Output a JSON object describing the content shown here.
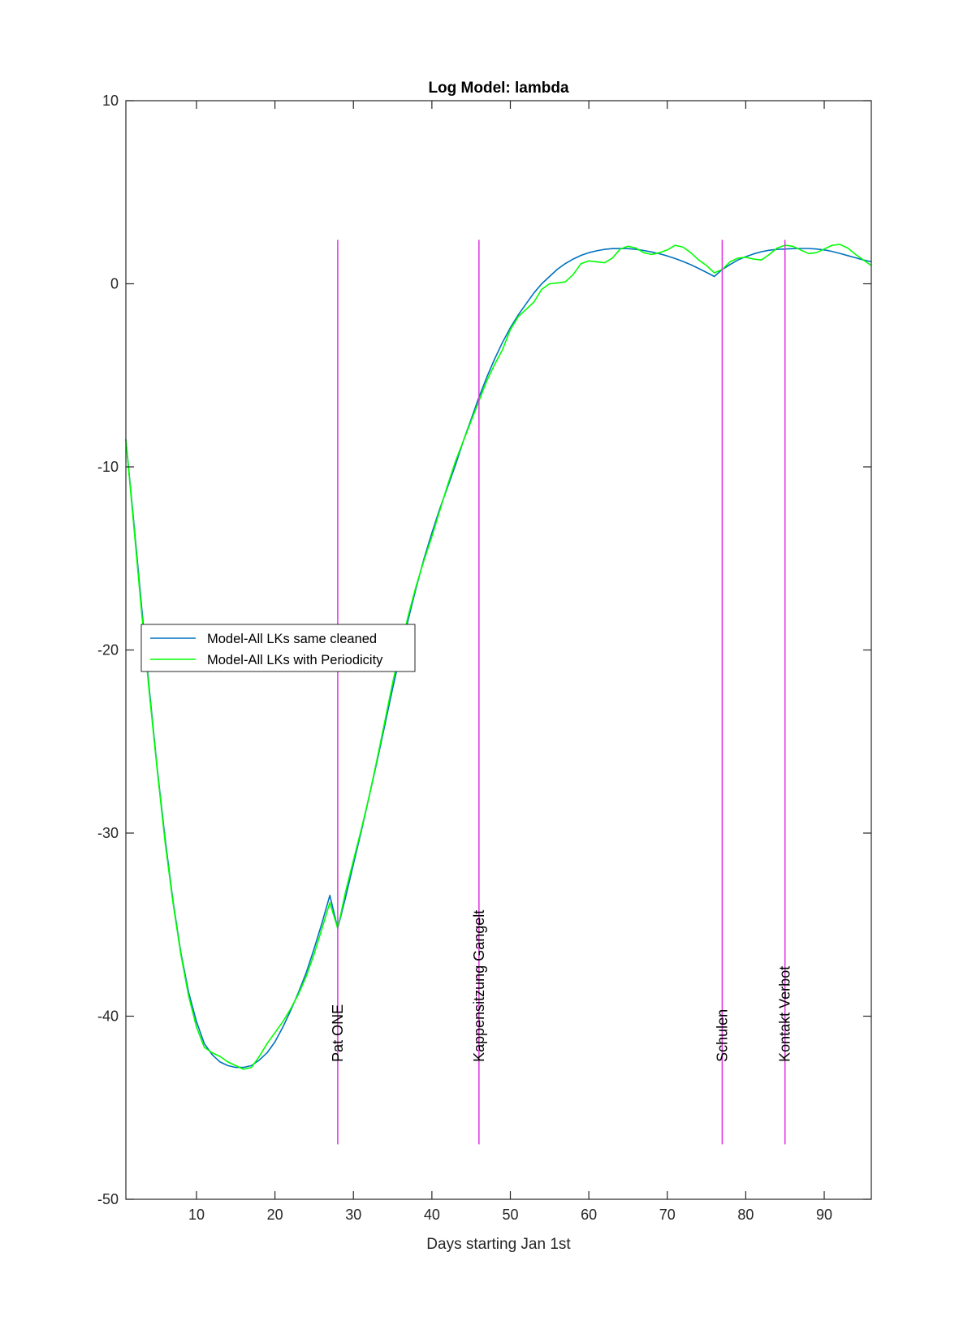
{
  "chart_data": {
    "type": "line",
    "title": "Log Model: lambda",
    "xlabel": "Days starting Jan 1st",
    "ylabel": "",
    "xlim": [
      1,
      96
    ],
    "ylim": [
      -50,
      10
    ],
    "xticks": [
      10,
      20,
      30,
      40,
      50,
      60,
      70,
      80,
      90
    ],
    "yticks": [
      -50,
      -40,
      -30,
      -20,
      -10,
      0,
      10
    ],
    "grid": false,
    "legend_position": "middle-left",
    "series": [
      {
        "name": "Model-All LKs same cleaned",
        "color": "#0072BD",
        "points": [
          [
            1,
            -8.5
          ],
          [
            2,
            -13
          ],
          [
            3,
            -17.6
          ],
          [
            4,
            -22.2
          ],
          [
            5,
            -26.5
          ],
          [
            6,
            -30.3
          ],
          [
            7,
            -33.7
          ],
          [
            8,
            -36.5
          ],
          [
            9,
            -38.7
          ],
          [
            10,
            -40.3
          ],
          [
            11,
            -41.5
          ],
          [
            12,
            -42.1
          ],
          [
            13,
            -42.5
          ],
          [
            14,
            -42.7
          ],
          [
            15,
            -42.8
          ],
          [
            16,
            -42.8
          ],
          [
            17,
            -42.7
          ],
          [
            18,
            -42.4
          ],
          [
            19,
            -42
          ],
          [
            20,
            -41.4
          ],
          [
            21,
            -40.6
          ],
          [
            22,
            -39.7
          ],
          [
            23,
            -38.7
          ],
          [
            24,
            -37.6
          ],
          [
            25,
            -36.3
          ],
          [
            26,
            -34.9
          ],
          [
            27,
            -33.4
          ],
          [
            28,
            -35.2
          ],
          [
            29,
            -33.5
          ],
          [
            30,
            -31.7
          ],
          [
            31,
            -29.9
          ],
          [
            32,
            -28
          ],
          [
            33,
            -26.1
          ],
          [
            34,
            -24.1
          ],
          [
            35,
            -22.1
          ],
          [
            36,
            -20.2
          ],
          [
            37,
            -18.3
          ],
          [
            38,
            -16.6
          ],
          [
            39,
            -15
          ],
          [
            40,
            -13.6
          ],
          [
            41,
            -12.3
          ],
          [
            42,
            -11.1
          ],
          [
            43,
            -9.9
          ],
          [
            44,
            -8.6
          ],
          [
            45,
            -7.4
          ],
          [
            46,
            -6.2
          ],
          [
            47,
            -5.1
          ],
          [
            48,
            -4.1
          ],
          [
            49,
            -3.2
          ],
          [
            50,
            -2.4
          ],
          [
            51,
            -1.7
          ],
          [
            52,
            -1.1
          ],
          [
            53,
            -0.5
          ],
          [
            54,
            0
          ],
          [
            55,
            0.4
          ],
          [
            56,
            0.8
          ],
          [
            57,
            1.1
          ],
          [
            58,
            1.35
          ],
          [
            59,
            1.55
          ],
          [
            60,
            1.7
          ],
          [
            61,
            1.8
          ],
          [
            62,
            1.88
          ],
          [
            63,
            1.92
          ],
          [
            64,
            1.93
          ],
          [
            65,
            1.92
          ],
          [
            66,
            1.88
          ],
          [
            67,
            1.82
          ],
          [
            68,
            1.74
          ],
          [
            69,
            1.64
          ],
          [
            70,
            1.52
          ],
          [
            71,
            1.38
          ],
          [
            72,
            1.22
          ],
          [
            73,
            1.04
          ],
          [
            74,
            0.84
          ],
          [
            75,
            0.62
          ],
          [
            76,
            0.4
          ],
          [
            77,
            0.78
          ],
          [
            78,
            1.05
          ],
          [
            79,
            1.3
          ],
          [
            80,
            1.48
          ],
          [
            81,
            1.63
          ],
          [
            82,
            1.75
          ],
          [
            83,
            1.83
          ],
          [
            84,
            1.88
          ],
          [
            85,
            1.9
          ],
          [
            86,
            1.92
          ],
          [
            87,
            1.93
          ],
          [
            88,
            1.93
          ],
          [
            89,
            1.9
          ],
          [
            90,
            1.85
          ],
          [
            91,
            1.77
          ],
          [
            92,
            1.66
          ],
          [
            93,
            1.54
          ],
          [
            94,
            1.42
          ],
          [
            95,
            1.3
          ],
          [
            96,
            1.2
          ]
        ]
      },
      {
        "name": "Model-All LKs with Periodicity",
        "color": "#00FF00",
        "points": [
          [
            1,
            -8.5
          ],
          [
            2,
            -13.2
          ],
          [
            3,
            -17.9
          ],
          [
            4,
            -22.4
          ],
          [
            5,
            -26.6
          ],
          [
            6,
            -30.5
          ],
          [
            7,
            -33.8
          ],
          [
            8,
            -36.6
          ],
          [
            9,
            -38.9
          ],
          [
            10,
            -40.6
          ],
          [
            11,
            -41.7
          ],
          [
            12,
            -42
          ],
          [
            13,
            -42.2
          ],
          [
            14,
            -42.5
          ],
          [
            15,
            -42.7
          ],
          [
            16,
            -42.9
          ],
          [
            17,
            -42.8
          ],
          [
            18,
            -42.2
          ],
          [
            19,
            -41.5
          ],
          [
            20,
            -40.9
          ],
          [
            21,
            -40.3
          ],
          [
            22,
            -39.6
          ],
          [
            23,
            -38.8
          ],
          [
            24,
            -37.8
          ],
          [
            25,
            -36.6
          ],
          [
            26,
            -35.2
          ],
          [
            27,
            -33.8
          ],
          [
            28,
            -35.2
          ],
          [
            29,
            -33.2
          ],
          [
            30,
            -31.5
          ],
          [
            31,
            -29.8
          ],
          [
            32,
            -28
          ],
          [
            33,
            -26
          ],
          [
            34,
            -23.9
          ],
          [
            35,
            -21.8
          ],
          [
            36,
            -19.9
          ],
          [
            37,
            -18.1
          ],
          [
            38,
            -16.5
          ],
          [
            39,
            -15.1
          ],
          [
            40,
            -13.8
          ],
          [
            41,
            -12.4
          ],
          [
            42,
            -11
          ],
          [
            43,
            -9.7
          ],
          [
            44,
            -8.6
          ],
          [
            45,
            -7.5
          ],
          [
            46,
            -6.4
          ],
          [
            47,
            -5.3
          ],
          [
            48,
            -4.4
          ],
          [
            49,
            -3.6
          ],
          [
            50,
            -2.5
          ],
          [
            51,
            -1.8
          ],
          [
            52,
            -1.4
          ],
          [
            53,
            -1
          ],
          [
            54,
            -0.3
          ],
          [
            55,
            0
          ],
          [
            56,
            0.05
          ],
          [
            57,
            0.1
          ],
          [
            58,
            0.5
          ],
          [
            59,
            1.1
          ],
          [
            60,
            1.25
          ],
          [
            61,
            1.2
          ],
          [
            62,
            1.15
          ],
          [
            63,
            1.4
          ],
          [
            64,
            1.9
          ],
          [
            65,
            2.05
          ],
          [
            66,
            1.95
          ],
          [
            67,
            1.7
          ],
          [
            68,
            1.6
          ],
          [
            69,
            1.7
          ],
          [
            70,
            1.85
          ],
          [
            71,
            2.1
          ],
          [
            72,
            2
          ],
          [
            73,
            1.7
          ],
          [
            74,
            1.3
          ],
          [
            75,
            1
          ],
          [
            76,
            0.6
          ],
          [
            77,
            0.78
          ],
          [
            78,
            1.2
          ],
          [
            79,
            1.4
          ],
          [
            80,
            1.45
          ],
          [
            81,
            1.35
          ],
          [
            82,
            1.3
          ],
          [
            83,
            1.6
          ],
          [
            84,
            1.95
          ],
          [
            85,
            2.1
          ],
          [
            86,
            2.05
          ],
          [
            87,
            1.85
          ],
          [
            88,
            1.65
          ],
          [
            89,
            1.7
          ],
          [
            90,
            1.9
          ],
          [
            91,
            2.1
          ],
          [
            92,
            2.15
          ],
          [
            93,
            1.95
          ],
          [
            94,
            1.6
          ],
          [
            95,
            1.3
          ],
          [
            96,
            1
          ]
        ]
      }
    ],
    "events": [
      {
        "x": 28,
        "label": "Pat ONE",
        "color": "#E032E0",
        "ymin": -47,
        "ymax": 2.4
      },
      {
        "x": 46,
        "label": "Kappensitzung Gangelt",
        "color": "#E032E0",
        "ymin": -47,
        "ymax": 2.4
      },
      {
        "x": 77,
        "label": "Schulen",
        "color": "#E032E0",
        "ymin": -47,
        "ymax": 2.4
      },
      {
        "x": 85,
        "label": "Kontakt Verbot",
        "color": "#E032E0",
        "ymin": -47,
        "ymax": 2.4
      }
    ]
  }
}
